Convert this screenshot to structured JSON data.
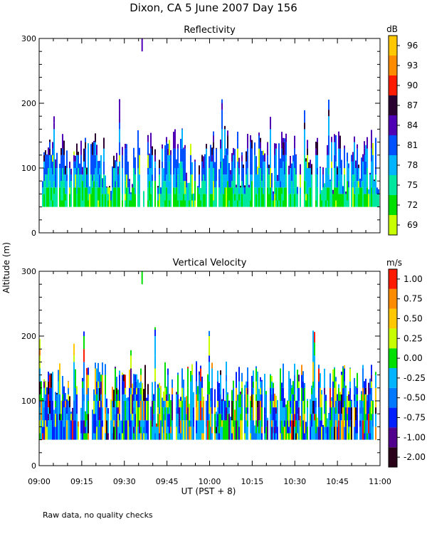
{
  "title": "Dixon, CA   5 June 2007   Day 156",
  "ylabel": "Altitude (m)",
  "xlabel": "UT   (PST + 8)",
  "footnote": "Raw data, no quality checks",
  "chart_data": [
    {
      "type": "heatmap",
      "title": "Reflectivity",
      "x_range_ut_hours": [
        9.0,
        11.0
      ],
      "x_tick_labels": [
        "09:00",
        "09:15",
        "09:30",
        "09:45",
        "10:00",
        "10:15",
        "10:30",
        "10:45",
        "11:00"
      ],
      "x_tick_values": [
        9.0,
        9.25,
        9.5,
        9.75,
        10.0,
        10.25,
        10.5,
        10.75,
        11.0
      ],
      "ylim": [
        0,
        300
      ],
      "y_ticks": [
        0,
        100,
        200,
        300
      ],
      "colorbar": {
        "unit": "dB",
        "range": [
          67.5,
          97.5
        ],
        "tick_labels": [
          "69",
          "72",
          "75",
          "78",
          "81",
          "84",
          "87",
          "90",
          "93",
          "96"
        ],
        "tick_values": [
          69,
          72,
          75,
          78,
          81,
          84,
          87,
          90,
          93,
          96
        ],
        "colors": [
          "#c8ff00",
          "#00e000",
          "#00e8a0",
          "#00b4ff",
          "#0050ff",
          "#5000b4",
          "#2a0030",
          "#ff1a00",
          "#ff8c00",
          "#ffc800"
        ]
      },
      "echo_base_m": 40,
      "typical_echo_top_m": [
        100,
        160
      ],
      "max_echo_top_m": 220,
      "isolated_echo": {
        "time_ut": "09:36",
        "altitude_m": [
          280,
          300
        ]
      },
      "dominant_values_db": [
        75,
        78,
        81,
        84,
        87
      ]
    },
    {
      "type": "heatmap",
      "title": "Vertical Velocity",
      "x_range_ut_hours": [
        9.0,
        11.0
      ],
      "x_tick_labels": [
        "09:00",
        "09:15",
        "09:30",
        "09:45",
        "10:00",
        "10:15",
        "10:30",
        "10:45",
        "11:00"
      ],
      "x_tick_values": [
        9.0,
        9.25,
        9.5,
        9.75,
        10.0,
        10.25,
        10.5,
        10.75,
        11.0
      ],
      "ylim": [
        0,
        300
      ],
      "y_ticks": [
        0,
        100,
        200,
        300
      ],
      "colorbar": {
        "unit": "m/s",
        "range": [
          -2.0,
          1.25
        ],
        "tick_labels": [
          "-2.00",
          "-1.00",
          "-0.75",
          "-0.50",
          "-0.25",
          "0.00",
          "0.25",
          "0.50",
          "0.75",
          "1.00"
        ],
        "tick_values": [
          -2.0,
          -1.0,
          -0.75,
          -0.5,
          -0.25,
          0.0,
          0.25,
          0.5,
          0.75,
          1.0
        ],
        "colors": [
          "#2a0018",
          "#50008c",
          "#0020ff",
          "#0078ff",
          "#00b4ff",
          "#00e000",
          "#c8ff00",
          "#ffc800",
          "#ff8c00",
          "#ff1a00"
        ]
      },
      "echo_base_m": 40,
      "typical_echo_top_m": [
        100,
        160
      ],
      "max_echo_top_m": 220,
      "isolated_echo": {
        "time_ut": "09:36",
        "altitude_m": [
          280,
          300
        ]
      },
      "dominant_values_ms": [
        -0.75,
        -0.5,
        -0.25,
        0.0,
        0.25
      ]
    }
  ]
}
